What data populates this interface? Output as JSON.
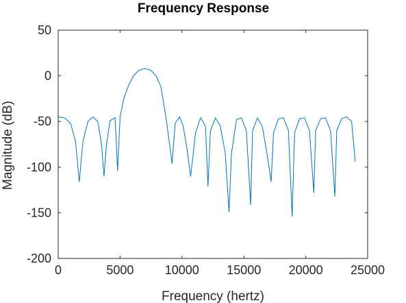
{
  "chart_data": {
    "type": "line",
    "title": "Frequency Response",
    "xlabel": "Frequency (hertz)",
    "ylabel": "Magnitude (dB)",
    "xlim": [
      0,
      25000
    ],
    "ylim": [
      -200,
      50
    ],
    "xticks": [
      0,
      5000,
      10000,
      15000,
      20000,
      25000
    ],
    "xtick_labels": [
      "0",
      "5000",
      "10000",
      "15000",
      "20000",
      "25000"
    ],
    "yticks": [
      -200,
      -150,
      -100,
      -50,
      0,
      50
    ],
    "ytick_labels": [
      "-200",
      "-150",
      "-100",
      "-50",
      "0",
      "50"
    ],
    "grid": false,
    "legend": false,
    "line_color": "#0072bd",
    "series": [
      {
        "x": [
          0,
          500,
          1000,
          1400,
          1700,
          2000,
          2400,
          2800,
          3200,
          3500,
          3700,
          3900,
          4200,
          4600,
          4800,
          5000,
          5300,
          5700,
          6100,
          6500,
          7000,
          7500,
          7900,
          8300,
          8700,
          9000,
          9200,
          9450,
          9800,
          10100,
          10400,
          10700,
          11100,
          11500,
          11900,
          12100,
          12300,
          12700,
          13100,
          13500,
          13800,
          14000,
          14400,
          14800,
          15200,
          15550,
          15700,
          16100,
          16500,
          16900,
          17200,
          17400,
          17800,
          18200,
          18600,
          18900,
          19100,
          19500,
          19900,
          20300,
          20650,
          20800,
          21200,
          21600,
          22000,
          22350,
          22500,
          22900,
          23300,
          23700,
          24000
        ],
        "y": [
          -45,
          -46,
          -52,
          -72,
          -116,
          -72,
          -50,
          -45,
          -50,
          -75,
          -110,
          -75,
          -49,
          -46,
          -104,
          -45,
          -25,
          -10,
          0,
          6,
          8,
          6,
          0,
          -12,
          -45,
          -75,
          -96,
          -52,
          -45,
          -55,
          -80,
          -110,
          -62,
          -46,
          -55,
          -121,
          -60,
          -46,
          -55,
          -85,
          -149,
          -85,
          -48,
          -46,
          -60,
          -141,
          -60,
          -46,
          -56,
          -88,
          -116,
          -62,
          -47,
          -46,
          -60,
          -154,
          -62,
          -47,
          -46,
          -60,
          -128,
          -60,
          -47,
          -46,
          -60,
          -132,
          -60,
          -47,
          -45,
          -50,
          -94
        ]
      }
    ]
  }
}
